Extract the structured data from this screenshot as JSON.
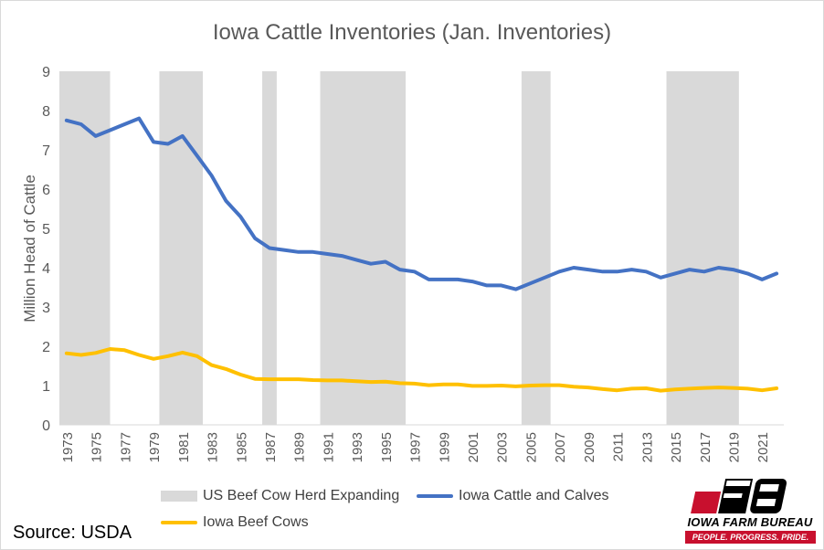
{
  "chart_data": {
    "type": "line",
    "title": "Iowa Cattle Inventories (Jan. Inventories)",
    "xlabel": "",
    "ylabel": "Million Head of Cattle",
    "ylim": [
      0,
      9
    ],
    "yticks": [
      0,
      1,
      2,
      3,
      4,
      5,
      6,
      7,
      8,
      9
    ],
    "grid": false,
    "legend_position": "bottom",
    "x": [
      1973,
      1974,
      1975,
      1976,
      1977,
      1978,
      1979,
      1980,
      1981,
      1982,
      1983,
      1984,
      1985,
      1986,
      1987,
      1988,
      1989,
      1990,
      1991,
      1992,
      1993,
      1994,
      1995,
      1996,
      1997,
      1998,
      1999,
      2000,
      2001,
      2002,
      2003,
      2004,
      2005,
      2006,
      2007,
      2008,
      2009,
      2010,
      2011,
      2012,
      2013,
      2014,
      2015,
      2016,
      2017,
      2018,
      2019,
      2020,
      2021,
      2022
    ],
    "xtick_labels": [
      "1973",
      "1975",
      "1977",
      "1979",
      "1981",
      "1983",
      "1985",
      "1987",
      "1989",
      "1991",
      "1993",
      "1995",
      "1997",
      "1999",
      "2001",
      "2003",
      "2005",
      "2007",
      "2009",
      "2011",
      "2013",
      "2015",
      "2017",
      "2019",
      "2021"
    ],
    "series": [
      {
        "name": "Iowa Cattle and Calves",
        "color": "#4472c4",
        "values": [
          7.75,
          7.65,
          7.35,
          7.5,
          7.65,
          7.8,
          7.2,
          7.15,
          7.35,
          6.85,
          6.35,
          5.7,
          5.3,
          4.75,
          4.5,
          4.45,
          4.4,
          4.4,
          4.35,
          4.3,
          4.2,
          4.1,
          4.15,
          3.95,
          3.9,
          3.7,
          3.7,
          3.7,
          3.65,
          3.55,
          3.55,
          3.45,
          3.6,
          3.75,
          3.9,
          4.0,
          3.95,
          3.9,
          3.9,
          3.95,
          3.9,
          3.75,
          3.85,
          3.95,
          3.9,
          4.0,
          3.95,
          3.85,
          3.7,
          3.85
        ]
      },
      {
        "name": "Iowa Beef Cows",
        "color": "#ffc000",
        "values": [
          1.82,
          1.78,
          1.83,
          1.93,
          1.9,
          1.78,
          1.68,
          1.75,
          1.84,
          1.75,
          1.52,
          1.42,
          1.28,
          1.17,
          1.16,
          1.16,
          1.16,
          1.14,
          1.13,
          1.13,
          1.11,
          1.09,
          1.1,
          1.06,
          1.05,
          1.01,
          1.03,
          1.03,
          0.99,
          0.99,
          1.0,
          0.98,
          1.0,
          1.01,
          1.01,
          0.97,
          0.95,
          0.91,
          0.88,
          0.92,
          0.93,
          0.87,
          0.9,
          0.92,
          0.94,
          0.95,
          0.94,
          0.92,
          0.88,
          0.93
        ]
      }
    ],
    "shaded_periods": {
      "name": "US Beef Cow Herd Expanding",
      "color": "#d9d9d9",
      "ranges": [
        [
          1972.5,
          1976.0
        ],
        [
          1979.4,
          1982.4
        ],
        [
          1986.5,
          1987.5
        ],
        [
          1990.5,
          1996.4
        ],
        [
          2004.4,
          2006.4
        ],
        [
          2014.4,
          2019.4
        ]
      ]
    }
  },
  "source": "Source: USDA",
  "logo": {
    "text": "IOWA FARM BUREAU",
    "tagline": "PEOPLE. PROGRESS. PRIDE.",
    "brand_color": "#c8102e"
  }
}
